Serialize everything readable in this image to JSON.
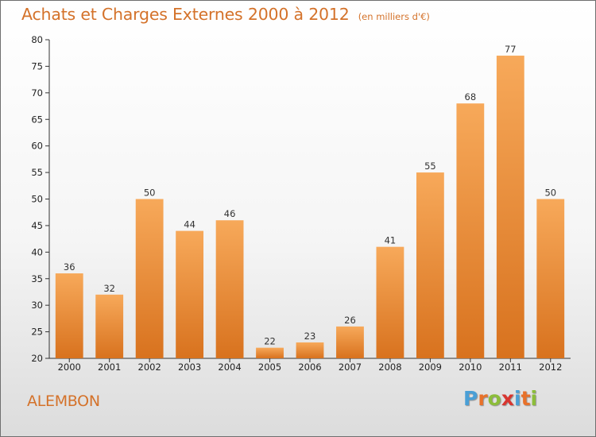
{
  "header": {
    "title": "Achats et Charges Externes 2000 à 2012",
    "subtitle": "(en milliers d'€)"
  },
  "footer": {
    "place_name": "ALEMBON",
    "logo_letters": [
      "P",
      "r",
      "o",
      "x",
      "i",
      "t",
      "i"
    ],
    "logo_colors": [
      "#4a9fd6",
      "#e8712a",
      "#8cbd3a",
      "#d8352f",
      "#4a9fd6",
      "#e8712a",
      "#8cbd3a"
    ]
  },
  "colors": {
    "bar_light": "#f7a95a",
    "bar_dark": "#d8721e",
    "title": "#d4722a"
  },
  "chart_data": {
    "type": "bar",
    "title": "Achats et Charges Externes 2000 à 2012",
    "subtitle": "(en milliers d'€)",
    "categories": [
      "2000",
      "2001",
      "2002",
      "2003",
      "2004",
      "2005",
      "2006",
      "2007",
      "2008",
      "2009",
      "2010",
      "2011",
      "2012"
    ],
    "values": [
      36,
      32,
      50,
      44,
      46,
      22,
      23,
      26,
      41,
      55,
      68,
      77,
      50
    ],
    "ylim": [
      20,
      80
    ],
    "yticks": [
      20,
      25,
      30,
      35,
      40,
      45,
      50,
      55,
      60,
      65,
      70,
      75,
      80
    ],
    "grid": false,
    "data_labels": true
  }
}
